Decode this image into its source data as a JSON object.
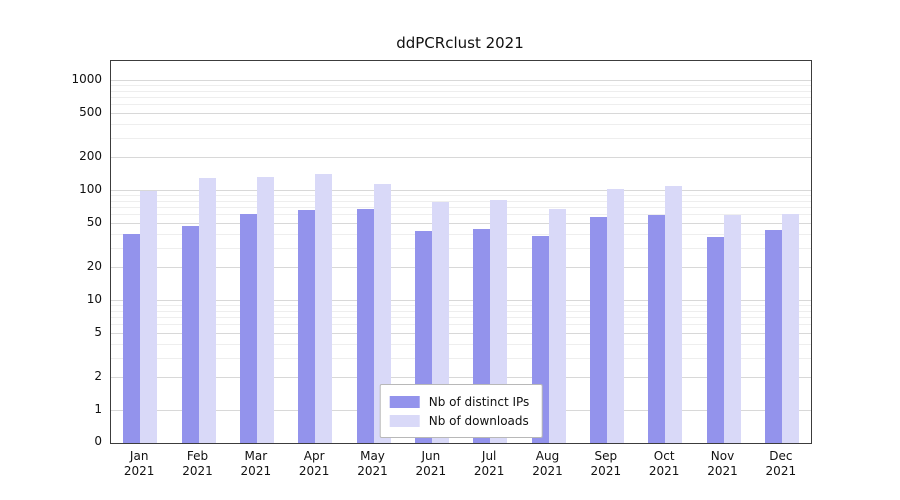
{
  "chart_data": {
    "type": "bar",
    "title": "ddPCRclust 2021",
    "categories": [
      "Jan",
      "Feb",
      "Mar",
      "Apr",
      "May",
      "Jun",
      "Jul",
      "Aug",
      "Sep",
      "Oct",
      "Nov",
      "Dec"
    ],
    "year_label": "2021",
    "series": [
      {
        "name": "Nb of distinct IPs",
        "color": "#9393ec",
        "values": [
          41,
          48,
          62,
          67,
          68,
          43,
          45,
          39,
          58,
          61,
          38,
          44
        ]
      },
      {
        "name": "Nb of downloads",
        "color": "#d9d9f8",
        "values": [
          100,
          130,
          135,
          142,
          115,
          80,
          83,
          68,
          104,
          110,
          60,
          62
        ]
      }
    ],
    "y_ticks": [
      0,
      1,
      2,
      5,
      10,
      20,
      50,
      100,
      200,
      500,
      1000
    ],
    "y_minor_ticks": [
      3,
      4,
      6,
      7,
      8,
      9,
      30,
      40,
      60,
      70,
      80,
      90,
      300,
      400,
      600,
      700,
      800,
      900
    ],
    "y_scale": "log",
    "ylim": [
      0,
      1280
    ],
    "grid": true,
    "legend_position": "bottom-center",
    "grid_major_color": "#d8d8d8",
    "grid_minor_color": "#eeeeee"
  }
}
